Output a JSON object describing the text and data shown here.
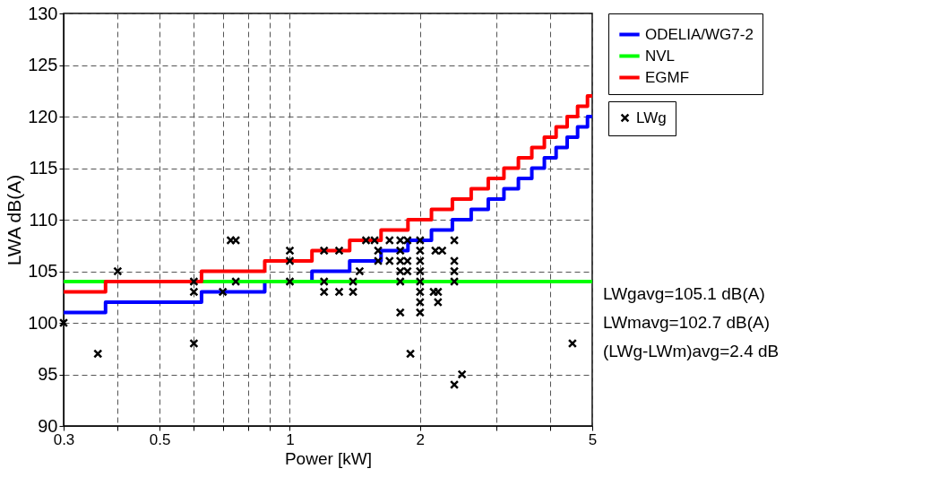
{
  "chart_data": {
    "type": "scatter",
    "xlabel": "Power [kW]",
    "ylabel": "LWA dB(A)",
    "log": "x",
    "grid": true,
    "legend": "top right",
    "xlim": [
      0.3,
      5
    ],
    "ylim": [
      90,
      130
    ],
    "xticks": [
      0.3,
      {
        "value": 0.4,
        "label": null
      },
      0.5,
      {
        "value": 0.6,
        "label": null
      },
      {
        "value": 0.7,
        "label": null
      },
      {
        "value": 0.8,
        "label": null
      },
      {
        "value": 0.9,
        "label": null
      },
      1,
      2,
      {
        "value": 3,
        "label": null
      },
      {
        "value": 4,
        "label": null
      },
      5
    ],
    "yticks": [
      90,
      95,
      100,
      105,
      110,
      115,
      120,
      125,
      130
    ],
    "series": [
      {
        "name": "LWg",
        "marker": "cross",
        "color": "#000000",
        "x": [
          0.3,
          0.36,
          0.4,
          0.6,
          0.6,
          0.6,
          0.73,
          0.75,
          0.7,
          0.75,
          1,
          1,
          1,
          1.2,
          1.3,
          1.2,
          1.2,
          1.3,
          1.4,
          1.4,
          1.45,
          1.5,
          1.57,
          1.6,
          1.6,
          1.7,
          1.7,
          1.8,
          1.8,
          1.8,
          1.8,
          1.8,
          1.8,
          1.87,
          1.87,
          1.87,
          2,
          2,
          2,
          2,
          2,
          2,
          2,
          2,
          1.9,
          2.17,
          2.25,
          2.4,
          2.15,
          2.2,
          2.2,
          2.4,
          2.4,
          2.4,
          2.4,
          2.5,
          4.5
        ],
        "values": [
          100,
          97,
          105,
          104,
          103,
          98,
          108,
          108,
          103,
          104,
          107,
          106,
          104,
          107,
          107,
          104,
          103,
          103,
          103,
          104,
          105,
          108,
          108,
          107,
          106,
          108,
          106,
          108,
          107,
          106,
          105,
          104,
          101,
          108,
          106,
          105,
          108,
          107,
          106,
          105,
          104,
          103,
          102,
          101,
          97,
          107,
          107,
          108,
          103,
          103,
          102,
          106,
          105,
          104,
          94,
          95,
          98
        ]
      },
      {
        "name": "ODELIA/WG7-2",
        "type": "step",
        "color": "#0000ff",
        "x": [
          0.3,
          0.375,
          0.625,
          0.875,
          1.125,
          1.375,
          1.625,
          1.875,
          2.125,
          2.375,
          2.625,
          2.875,
          3.125,
          3.375,
          3.625,
          3.875,
          4.125,
          4.375,
          4.625,
          4.875,
          5
        ],
        "values": [
          101,
          102,
          103,
          104,
          105,
          106,
          107,
          108,
          109,
          110,
          111,
          112,
          113,
          114,
          115,
          116,
          117,
          118,
          119,
          120,
          120
        ]
      },
      {
        "name": "NVL",
        "type": "line",
        "color": "#00ff00",
        "x": [
          0.3,
          5
        ],
        "values": [
          104,
          104
        ]
      },
      {
        "name": "EGMF",
        "type": "step",
        "color": "#ff0000",
        "x": [
          0.3,
          0.375,
          0.625,
          0.875,
          1.125,
          1.375,
          1.625,
          1.875,
          2.125,
          2.375,
          2.625,
          2.875,
          3.125,
          3.375,
          3.625,
          3.875,
          4.125,
          4.375,
          4.625,
          4.875,
          5
        ],
        "values": [
          103,
          104,
          105,
          106,
          107,
          108,
          109,
          110,
          111,
          112,
          113,
          114,
          115,
          116,
          117,
          118,
          119,
          120,
          121,
          122,
          122
        ]
      }
    ],
    "annotations": [
      "LWgavg=105.1 dB(A)",
      "LWmavg=102.7 dB(A)",
      "(LWg-LWm)avg=2.4 dB"
    ]
  }
}
